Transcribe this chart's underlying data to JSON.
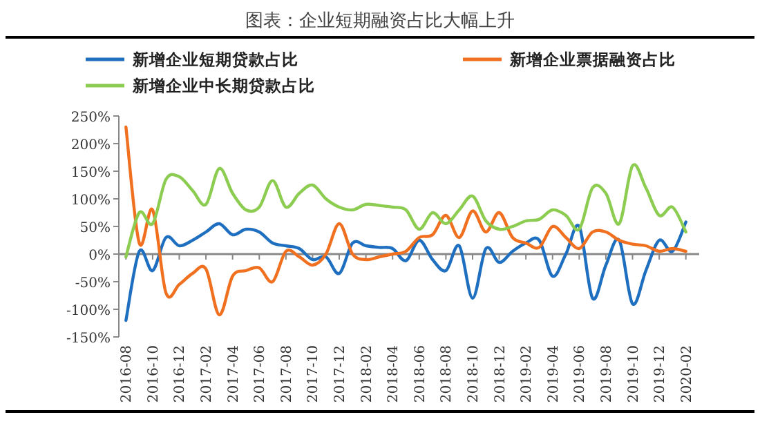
{
  "chart_data": {
    "type": "line",
    "title": "图表：企业短期融资占比大幅上升",
    "x": [
      "2016-08",
      "2016-09",
      "2016-10",
      "2016-11",
      "2016-12",
      "2017-01",
      "2017-02",
      "2017-03",
      "2017-04",
      "2017-05",
      "2017-06",
      "2017-07",
      "2017-08",
      "2017-09",
      "2017-10",
      "2017-11",
      "2017-12",
      "2018-01",
      "2018-02",
      "2018-03",
      "2018-04",
      "2018-05",
      "2018-06",
      "2018-07",
      "2018-08",
      "2018-09",
      "2018-10",
      "2018-11",
      "2018-12",
      "2019-01",
      "2019-02",
      "2019-03",
      "2019-04",
      "2019-05",
      "2019-06",
      "2019-07",
      "2019-08",
      "2019-09",
      "2019-10",
      "2019-11",
      "2019-12",
      "2020-01",
      "2020-02"
    ],
    "series": [
      {
        "name": "新增企业短期贷款占比",
        "color": "#1f6fc0",
        "values": [
          -120,
          5,
          -30,
          30,
          15,
          25,
          40,
          55,
          35,
          45,
          40,
          20,
          15,
          10,
          -10,
          -5,
          -35,
          20,
          15,
          12,
          10,
          -12,
          25,
          -10,
          -30,
          15,
          -80,
          10,
          -15,
          5,
          20,
          25,
          -40,
          0,
          50,
          -80,
          -20,
          25,
          -90,
          -30,
          25,
          5,
          58
        ]
      },
      {
        "name": "新增企业票据融资占比",
        "color": "#f07020",
        "values": [
          230,
          20,
          80,
          -70,
          -55,
          -35,
          -27,
          -110,
          -40,
          -30,
          -25,
          -50,
          5,
          -5,
          -20,
          0,
          55,
          0,
          -10,
          -5,
          0,
          5,
          30,
          35,
          70,
          30,
          78,
          40,
          75,
          30,
          20,
          12,
          50,
          30,
          10,
          40,
          40,
          25,
          18,
          15,
          5,
          10,
          5
        ]
      },
      {
        "name": "新增企业中长期贷款占比",
        "color": "#8ccc50",
        "values": [
          -5,
          75,
          55,
          135,
          140,
          115,
          90,
          155,
          110,
          80,
          85,
          133,
          85,
          110,
          125,
          100,
          85,
          80,
          90,
          88,
          85,
          80,
          45,
          75,
          55,
          80,
          105,
          60,
          45,
          50,
          60,
          63,
          80,
          70,
          45,
          120,
          110,
          55,
          160,
          120,
          70,
          85,
          40
        ]
      }
    ],
    "xlim": [
      "2016-07-15",
      "2020-03"
    ],
    "xticks": [
      "2016-08",
      "2016-10",
      "2016-12",
      "2017-02",
      "2017-04",
      "2017-06",
      "2017-08",
      "2017-10",
      "2017-12",
      "2018-02",
      "2018-04",
      "2018-06",
      "2018-08",
      "2018-10",
      "2018-12",
      "2019-02",
      "2019-04",
      "2019-06",
      "2019-08",
      "2019-10",
      "2019-12",
      "2020-02"
    ],
    "ylim": [
      -150,
      250
    ],
    "yticks": [
      {
        "value": -150,
        "label": "-150%"
      },
      {
        "value": -100,
        "label": "-100%"
      },
      {
        "value": -50,
        "label": "-50%"
      },
      {
        "value": 0,
        "label": "0%"
      },
      {
        "value": 50,
        "label": "50%"
      },
      {
        "value": 100,
        "label": "100%"
      },
      {
        "value": 150,
        "label": "150%"
      },
      {
        "value": 200,
        "label": "200%"
      },
      {
        "value": 250,
        "label": "250%"
      }
    ],
    "ref_lines": [
      {
        "axis": "y",
        "value": 0,
        "color": "#888888"
      }
    ],
    "legend": "top",
    "grid": false,
    "marker": "none",
    "line_style": "solid"
  }
}
